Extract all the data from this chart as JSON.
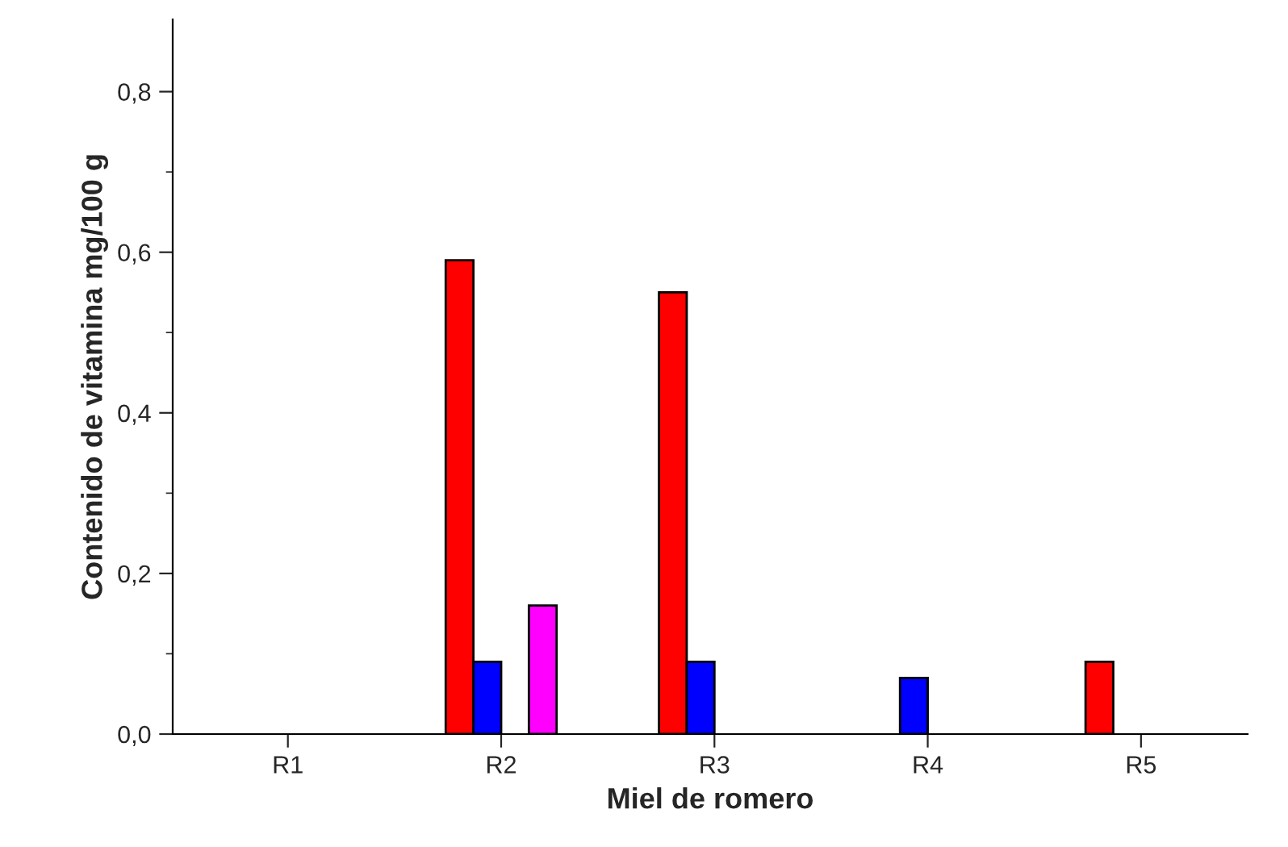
{
  "chart_data": {
    "type": "bar",
    "xlabel": "Miel de romero",
    "ylabel": "Contenido de vitamina mg/100 g",
    "categories": [
      "R1",
      "R2",
      "R3",
      "R4",
      "R5"
    ],
    "series": [
      {
        "color": "#ff0000",
        "values": [
          null,
          0.59,
          0.55,
          null,
          0.09
        ]
      },
      {
        "color": "#0000ff",
        "values": [
          null,
          0.09,
          0.09,
          0.07,
          null
        ]
      },
      {
        "values": [
          null,
          null,
          null,
          null,
          null
        ]
      },
      {
        "color": "#ff00ff",
        "values": [
          null,
          0.16,
          null,
          null,
          null
        ]
      }
    ],
    "ylim": [
      0,
      0.89
    ],
    "yticks": [
      {
        "value": 0,
        "label": "0,0"
      },
      {
        "value": 0.1,
        "label": null
      },
      {
        "value": 0.2,
        "label": "0,2"
      },
      {
        "value": 0.3,
        "label": null
      },
      {
        "value": 0.4,
        "label": "0,4"
      },
      {
        "value": 0.5,
        "label": null
      },
      {
        "value": 0.6,
        "label": "0,6"
      },
      {
        "value": 0.7,
        "label": null
      },
      {
        "value": 0.8,
        "label": "0,8"
      }
    ],
    "grid": false,
    "legend": false
  }
}
